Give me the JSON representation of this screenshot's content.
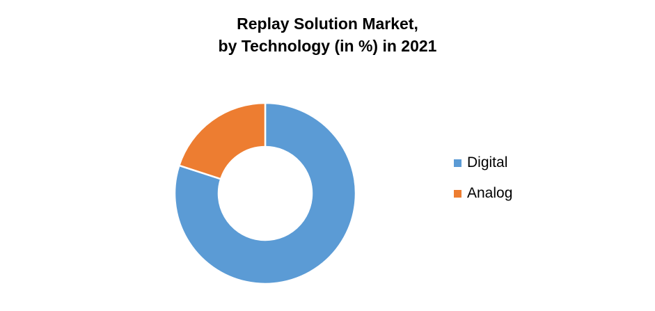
{
  "chart_data": {
    "type": "pie",
    "title_lines": [
      "Replay Solution Market,",
      "by Technology (in %) in 2021"
    ],
    "categories": [
      "Digital",
      "Analog"
    ],
    "values": [
      80,
      20
    ],
    "colors": [
      "#5B9BD5",
      "#ED7D31"
    ],
    "legend_position": "right",
    "donut": true
  }
}
